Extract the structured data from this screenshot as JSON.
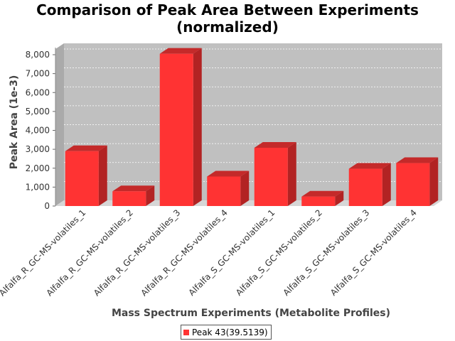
{
  "chart_data": {
    "type": "bar",
    "title_lines": [
      "Comparison of Peak Area Between Experiments",
      "(normalized)"
    ],
    "xlabel": "Mass Spectrum Experiments (Metabolite Profiles)",
    "ylabel": "Peak Area (1e-3)",
    "ylim": [
      0,
      8000
    ],
    "yticks": [
      "0",
      "1,000",
      "2,000",
      "3,000",
      "4,000",
      "5,000",
      "6,000",
      "7,000",
      "8,000"
    ],
    "grid": true,
    "legend_position": "bottom",
    "categories": [
      "Alfalfa_R_GC-MS-volatiles_1",
      "Alfalfa_R_GC-MS-volatiles_2",
      "Alfalfa_R_GC-MS-volatiles_3",
      "Alfalfa_R_GC-MS-volatiles_4",
      "Alfalfa_S_GC-MS-volatiles_1",
      "Alfalfa_S_GC-MS-volatiles_2",
      "Alfalfa_S_GC-MS-volatiles_3",
      "Alfalfa_S_GC-MS-volatiles_4"
    ],
    "series": [
      {
        "name": "Peak 43(39.5139)",
        "color": "#ff3333",
        "values": [
          2900,
          780,
          8050,
          1560,
          3080,
          500,
          1970,
          2270
        ]
      }
    ]
  }
}
